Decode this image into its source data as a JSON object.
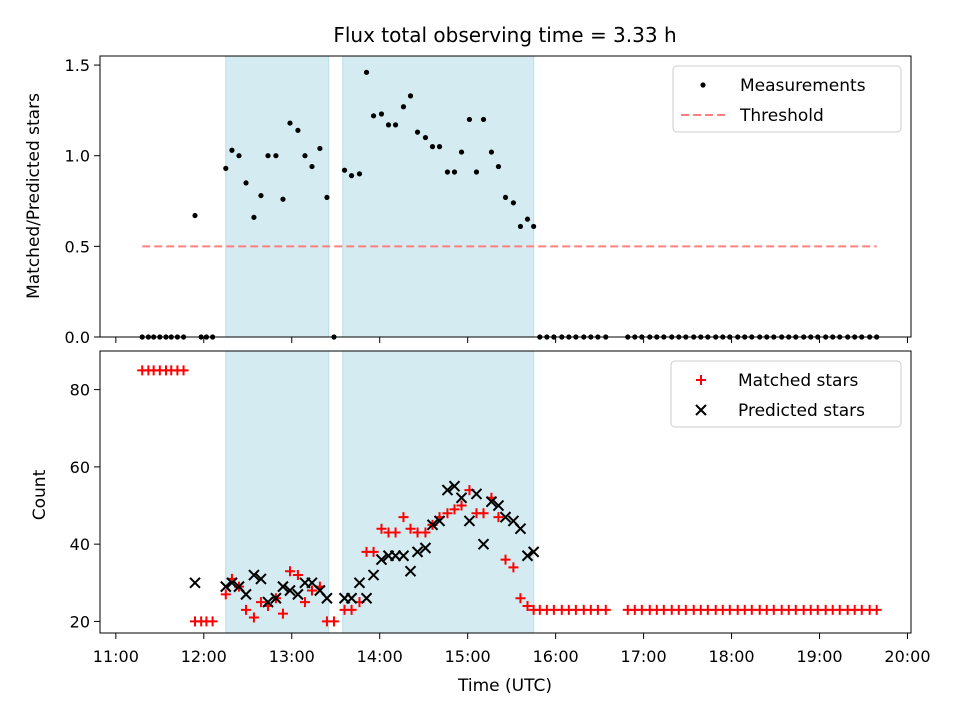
{
  "chart_data": {
    "title": "Flux total observing time = 3.33 h",
    "xlabel": "Time (UTC)",
    "xlim": [
      10.82,
      20.04
    ],
    "xticks": [
      {
        "value": 11,
        "label": "11:00"
      },
      {
        "value": 12,
        "label": "12:00"
      },
      {
        "value": 13,
        "label": "13:00"
      },
      {
        "value": 14,
        "label": "14:00"
      },
      {
        "value": 15,
        "label": "15:00"
      },
      {
        "value": 16,
        "label": "16:00"
      },
      {
        "value": 17,
        "label": "17:00"
      },
      {
        "value": 18,
        "label": "18:00"
      },
      {
        "value": 19,
        "label": "19:00"
      },
      {
        "value": 20,
        "label": "20:00"
      }
    ],
    "shaded_intervals": [
      [
        12.25,
        13.42
      ],
      [
        13.58,
        15.75
      ]
    ],
    "shade_color": "#d4ebf1",
    "panels": [
      {
        "type": "scatter",
        "ylabel": "Matched/Predicted stars",
        "ylim": [
          0,
          1.55
        ],
        "yticks": [
          {
            "value": 0,
            "label": "0.0"
          },
          {
            "value": 0.5,
            "label": "0.5"
          },
          {
            "value": 1.0,
            "label": "1.0"
          },
          {
            "value": 1.5,
            "label": "1.5"
          }
        ],
        "threshold": {
          "name": "Threshold",
          "value": 0.5,
          "x_range": [
            11.3,
            19.65
          ],
          "color": "#ff8080"
        },
        "measurements": {
          "name": "Measurements",
          "color": "#000000",
          "x": [
            11.3,
            11.37,
            11.43,
            11.5,
            11.57,
            11.63,
            11.7,
            11.77,
            11.9,
            11.97,
            12.03,
            12.1,
            12.25,
            12.32,
            12.4,
            12.48,
            12.57,
            12.65,
            12.73,
            12.82,
            12.9,
            12.98,
            13.07,
            13.15,
            13.23,
            13.32,
            13.4,
            13.48,
            13.6,
            13.68,
            13.77,
            13.85,
            13.93,
            14.02,
            14.1,
            14.18,
            14.27,
            14.35,
            14.43,
            14.52,
            14.6,
            14.68,
            14.77,
            14.85,
            14.93,
            15.02,
            15.1,
            15.18,
            15.27,
            15.35,
            15.43,
            15.52,
            15.6,
            15.68,
            15.75,
            15.82,
            15.9,
            15.98,
            16.07,
            16.15,
            16.23,
            16.32,
            16.4,
            16.48,
            16.57,
            16.82,
            16.9,
            16.98,
            17.07,
            17.15,
            17.23,
            17.32,
            17.4,
            17.48,
            17.57,
            17.65,
            17.73,
            17.82,
            17.9,
            17.98,
            18.07,
            18.15,
            18.23,
            18.32,
            18.4,
            18.48,
            18.57,
            18.65,
            18.73,
            18.82,
            18.9,
            18.98,
            19.07,
            19.15,
            19.23,
            19.32,
            19.4,
            19.48,
            19.57,
            19.65
          ],
          "y": [
            0,
            0,
            0,
            0,
            0,
            0,
            0,
            0,
            0.67,
            0,
            0,
            0,
            0.93,
            1.03,
            1.0,
            0.85,
            0.66,
            0.78,
            1.0,
            1.0,
            0.76,
            1.18,
            1.14,
            1.0,
            0.94,
            1.04,
            0.77,
            0,
            0.92,
            0.89,
            0.9,
            1.46,
            1.22,
            1.23,
            1.17,
            1.17,
            1.27,
            1.33,
            1.13,
            1.1,
            1.05,
            1.05,
            0.91,
            0.91,
            1.02,
            1.2,
            0.91,
            1.2,
            1.02,
            0.94,
            0.77,
            0.74,
            0.61,
            0.65,
            0.61,
            0,
            0,
            0,
            0,
            0,
            0,
            0,
            0,
            0,
            0,
            0,
            0,
            0,
            0,
            0,
            0,
            0,
            0,
            0,
            0,
            0,
            0,
            0,
            0,
            0,
            0,
            0,
            0,
            0,
            0,
            0,
            0,
            0,
            0,
            0,
            0,
            0,
            0,
            0,
            0,
            0,
            0,
            0,
            0,
            0
          ]
        },
        "legend": [
          "Measurements",
          "Threshold"
        ],
        "legend_position": "top-right"
      },
      {
        "type": "scatter",
        "ylabel": "Count",
        "ylim": [
          17,
          90
        ],
        "yticks": [
          {
            "value": 20,
            "label": "20"
          },
          {
            "value": 40,
            "label": "40"
          },
          {
            "value": 60,
            "label": "60"
          },
          {
            "value": 80,
            "label": "80"
          }
        ],
        "matched": {
          "name": "Matched stars",
          "color": "#ff0000",
          "x": [
            11.3,
            11.37,
            11.43,
            11.5,
            11.57,
            11.63,
            11.7,
            11.77,
            11.9,
            11.97,
            12.03,
            12.1,
            12.25,
            12.32,
            12.4,
            12.48,
            12.57,
            12.65,
            12.73,
            12.82,
            12.9,
            12.98,
            13.07,
            13.15,
            13.23,
            13.32,
            13.4,
            13.48,
            13.6,
            13.68,
            13.77,
            13.85,
            13.93,
            14.02,
            14.1,
            14.18,
            14.27,
            14.35,
            14.43,
            14.52,
            14.6,
            14.68,
            14.77,
            14.85,
            14.93,
            15.02,
            15.1,
            15.18,
            15.27,
            15.35,
            15.43,
            15.52,
            15.6,
            15.68,
            15.75,
            15.82,
            15.9,
            15.98,
            16.07,
            16.15,
            16.23,
            16.32,
            16.4,
            16.48,
            16.57,
            16.82,
            16.9,
            16.98,
            17.07,
            17.15,
            17.23,
            17.32,
            17.4,
            17.48,
            17.57,
            17.65,
            17.73,
            17.82,
            17.9,
            17.98,
            18.07,
            18.15,
            18.23,
            18.32,
            18.4,
            18.48,
            18.57,
            18.65,
            18.73,
            18.82,
            18.9,
            18.98,
            19.07,
            19.15,
            19.23,
            19.32,
            19.4,
            19.48,
            19.57,
            19.65
          ],
          "y": [
            85,
            85,
            85,
            85,
            85,
            85,
            85,
            85,
            20,
            20,
            20,
            20,
            27,
            31,
            29,
            23,
            21,
            25,
            24,
            26,
            22,
            33,
            32,
            25,
            28,
            29,
            20,
            20,
            23,
            23,
            25,
            38,
            38,
            44,
            43,
            43,
            47,
            44,
            43,
            43,
            45,
            47,
            48,
            49,
            50,
            54,
            48,
            48,
            52,
            47,
            36,
            34,
            26,
            24,
            23,
            23,
            23,
            23,
            23,
            23,
            23,
            23,
            23,
            23,
            23,
            23,
            23,
            23,
            23,
            23,
            23,
            23,
            23,
            23,
            23,
            23,
            23,
            23,
            23,
            23,
            23,
            23,
            23,
            23,
            23,
            23,
            23,
            23,
            23,
            23,
            23,
            23,
            23,
            23,
            23,
            23,
            23,
            23,
            23,
            23
          ]
        },
        "predicted": {
          "name": "Predicted stars",
          "color": "#000000",
          "x": [
            11.9,
            12.25,
            12.32,
            12.4,
            12.48,
            12.57,
            12.65,
            12.73,
            12.82,
            12.9,
            12.98,
            13.07,
            13.15,
            13.23,
            13.32,
            13.4,
            13.6,
            13.68,
            13.77,
            13.85,
            13.93,
            14.02,
            14.1,
            14.18,
            14.27,
            14.35,
            14.43,
            14.52,
            14.6,
            14.68,
            14.77,
            14.85,
            14.93,
            15.02,
            15.1,
            15.18,
            15.27,
            15.35,
            15.43,
            15.52,
            15.6,
            15.68,
            15.75
          ],
          "y": [
            30,
            29,
            30,
            29,
            27,
            32,
            31,
            25,
            26,
            29,
            28,
            27,
            30,
            30,
            28,
            26,
            26,
            26,
            30,
            26,
            32,
            36,
            37,
            37,
            37,
            33,
            38,
            39,
            45,
            46,
            54,
            55,
            52,
            46,
            53,
            40,
            51,
            50,
            47,
            46,
            44,
            37,
            38
          ]
        },
        "legend": [
          "Matched stars",
          "Predicted stars"
        ],
        "legend_position": "top-right"
      }
    ]
  }
}
